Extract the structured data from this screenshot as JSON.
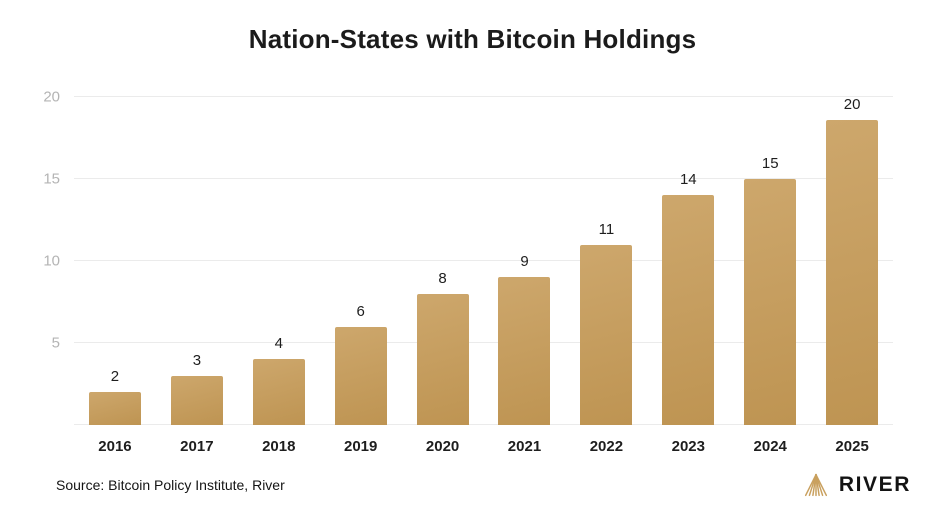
{
  "chart_data": {
    "type": "bar",
    "title": "Nation-States with Bitcoin Holdings",
    "categories": [
      "2016",
      "2017",
      "2018",
      "2019",
      "2020",
      "2021",
      "2022",
      "2023",
      "2024",
      "2025"
    ],
    "values": [
      2,
      3,
      4,
      6,
      8,
      9,
      11,
      14,
      15,
      20
    ],
    "xlabel": "",
    "ylabel": "",
    "ylim": [
      0,
      20
    ],
    "yticks": [
      5,
      10,
      15,
      20
    ],
    "grid": true,
    "legend": "none",
    "bar_gradient_top": "#CDA76C",
    "bar_gradient_bottom": "#BE9452"
  },
  "footer": {
    "source": "Source: Bitcoin Policy Institute, River",
    "brand": "RIVER"
  },
  "icons": {
    "logo": "river-logo-icon"
  },
  "colors": {
    "accent_gold": "#C69C5D",
    "logo_gold": "#C9A05E",
    "title_text": "#1b1b1b",
    "axis_label": "#b4b4b4",
    "value_text": "#1e1e1e",
    "grid_line": "#ebebeb"
  }
}
